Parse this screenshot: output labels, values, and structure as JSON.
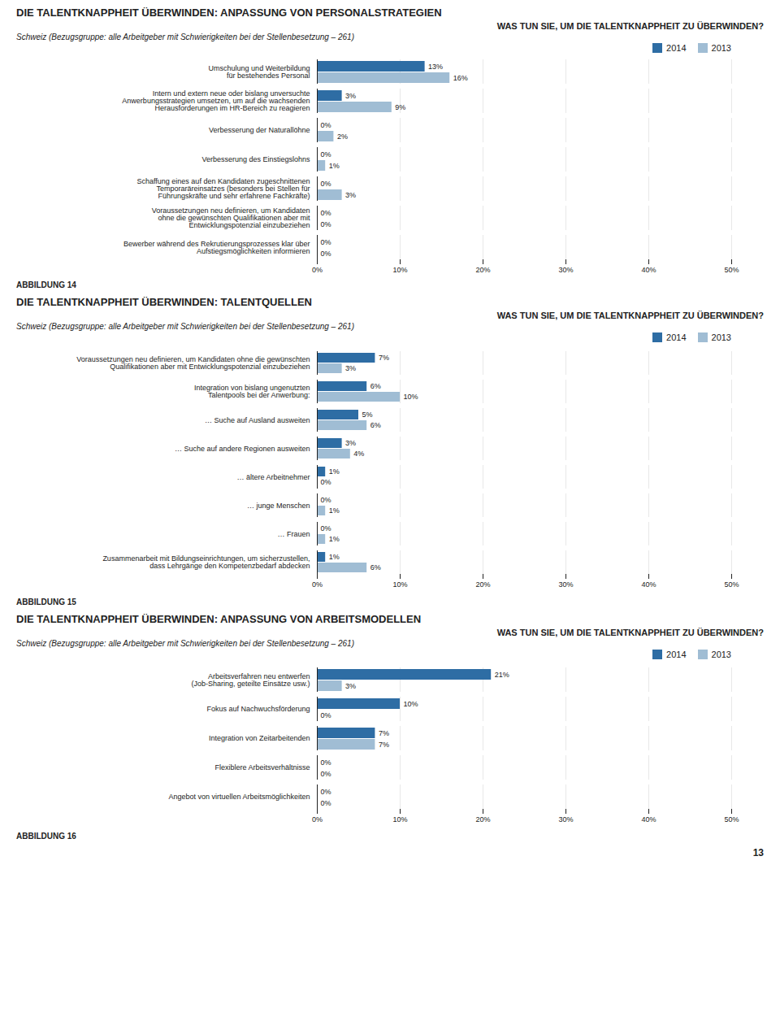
{
  "chart_data": [
    {
      "type": "bar",
      "orientation": "horizontal",
      "title": "DIE TALENTKNAPPHEIT ÜBERWINDEN: ANPASSUNG VON PERSONALSTRATEGIEN",
      "subtitle": "WAS TUN SIE, UM DIE TALENTKNAPPHEIT ZU ÜBERWINDEN?",
      "annotations": [
        "Schweiz (Bezugsgruppe: alle Arbeitgeber mit Schwierigkeiten bei der Stellenbesetzung – 261)",
        "ABBILDUNG 14"
      ],
      "categories": [
        "Umschulung und Weiterbildung\nfür bestehendes Personal",
        "Intern und extern neue oder bislang unversuchte\nAnwerbungsstrategien umsetzen, um auf die wachsenden\nHerausforderungen im HR-Bereich zu reagieren",
        "Verbesserung der Naturallöhne",
        "Verbesserung des Einstiegslohns",
        "Schaffung eines auf den Kandidaten zugeschnittenen\nTemporaräreinsatzes (besonders bei Stellen für\nFührungskräfte und sehr erfahrene Fachkräfte)",
        "Voraussetzungen neu definieren, um Kandidaten\nohne die gewünschten Qualifikationen aber mit\nEntwicklungspotenzial einzubeziehen",
        "Bewerber während des Rekrutierungsprozesses klar über\nAufstiegsmöglichkeiten informieren"
      ],
      "series": [
        {
          "name": "2014",
          "color": "#2e6da4",
          "values": [
            13,
            3,
            0,
            0,
            0,
            0,
            0
          ],
          "value_labels": [
            "13%",
            "3%",
            "0%",
            "0%",
            "0%",
            "0%",
            "0%"
          ]
        },
        {
          "name": "2013",
          "color": "#a0bdd4",
          "values": [
            16,
            9,
            2,
            1,
            3,
            0,
            0
          ],
          "value_labels": [
            "16%",
            "9%",
            "2%",
            "1%",
            "3%",
            "0%",
            "0%"
          ]
        }
      ],
      "xlim": [
        0,
        50
      ],
      "xticks": [
        {
          "value": 0,
          "label": "0%"
        },
        {
          "value": 10,
          "label": "10%"
        },
        {
          "value": 20,
          "label": "20%"
        },
        {
          "value": 30,
          "label": "30%"
        },
        {
          "value": 40,
          "label": "40%"
        },
        {
          "value": 50,
          "label": "50%"
        }
      ],
      "grid": true,
      "legend": "upper right",
      "data_labels": true
    },
    {
      "type": "bar",
      "orientation": "horizontal",
      "title": "DIE TALENTKNAPPHEIT ÜBERWINDEN: TALENTQUELLEN",
      "subtitle": "WAS TUN SIE, UM DIE TALENTKNAPPHEIT ZU ÜBERWINDEN?",
      "annotations": [
        "Schweiz (Bezugsgruppe: alle Arbeitgeber mit Schwierigkeiten bei der Stellenbesetzung – 261)",
        "ABBILDUNG 15"
      ],
      "categories": [
        "Voraussetzungen neu definieren, um Kandidaten ohne die gewünschten\nQualifikationen aber mit Entwicklungspotenzial einzubeziehen",
        "Integration von bislang ungenutzten\nTalentpools bei der Anwerbung:",
        "… Suche auf Ausland ausweiten",
        "… Suche auf andere Regionen ausweiten",
        "… ältere Arbeitnehmer",
        "… junge Menschen",
        "… Frauen",
        "Zusammenarbeit mit Bildungseinrichtungen, um sicherzustellen,\ndass Lehrgänge den Kompetenzbedarf abdecken"
      ],
      "series": [
        {
          "name": "2014",
          "color": "#2e6da4",
          "values": [
            7,
            6,
            5,
            3,
            1,
            0,
            0,
            1
          ],
          "value_labels": [
            "7%",
            "6%",
            "5%",
            "3%",
            "1%",
            "0%",
            "0%",
            "1%"
          ]
        },
        {
          "name": "2013",
          "color": "#a0bdd4",
          "values": [
            3,
            10,
            6,
            4,
            0,
            1,
            1,
            6
          ],
          "value_labels": [
            "3%",
            "10%",
            "6%",
            "4%",
            "0%",
            "1%",
            "1%",
            "6%"
          ]
        }
      ],
      "xlim": [
        0,
        50
      ],
      "xticks": [
        {
          "value": 0,
          "label": "0%"
        },
        {
          "value": 10,
          "label": "10%"
        },
        {
          "value": 20,
          "label": "20%"
        },
        {
          "value": 30,
          "label": "30%"
        },
        {
          "value": 40,
          "label": "40%"
        },
        {
          "value": 50,
          "label": "50%"
        }
      ],
      "grid": true,
      "legend": "upper right",
      "data_labels": true
    },
    {
      "type": "bar",
      "orientation": "horizontal",
      "title": "DIE TALENTKNAPPHEIT ÜBERWINDEN: ANPASSUNG VON ARBEITSMODELLEN",
      "subtitle": "WAS TUN SIE, UM DIE TALENTKNAPPHEIT ZU ÜBERWINDEN?",
      "annotations": [
        "Schweiz (Bezugsgruppe: alle Arbeitgeber mit Schwierigkeiten bei der Stellenbesetzung – 261)",
        "ABBILDUNG 16",
        "13"
      ],
      "categories": [
        "Arbeitsverfahren neu entwerfen\n(Job-Sharing, geteilte Einsätze usw.)",
        "Fokus auf Nachwuchsförderung",
        "Integration von Zeitarbeitenden",
        "Flexiblere Arbeitsverhältnisse",
        "Angebot von virtuellen Arbeitsmöglichkeiten"
      ],
      "series": [
        {
          "name": "2014",
          "color": "#2e6da4",
          "values": [
            21,
            10,
            7,
            0,
            0
          ],
          "value_labels": [
            "21%",
            "10%",
            "7%",
            "0%",
            "0%"
          ]
        },
        {
          "name": "2013",
          "color": "#a0bdd4",
          "values": [
            3,
            0,
            7,
            0,
            0
          ],
          "value_labels": [
            "3%",
            "0%",
            "7%",
            "0%",
            "0%"
          ]
        }
      ],
      "xlim": [
        0,
        50
      ],
      "xticks": [
        {
          "value": 0,
          "label": "0%"
        },
        {
          "value": 10,
          "label": "10%"
        },
        {
          "value": 20,
          "label": "20%"
        },
        {
          "value": 30,
          "label": "30%"
        },
        {
          "value": 40,
          "label": "40%"
        },
        {
          "value": 50,
          "label": "50%"
        }
      ],
      "grid": true,
      "legend": "upper right",
      "data_labels": true
    }
  ]
}
